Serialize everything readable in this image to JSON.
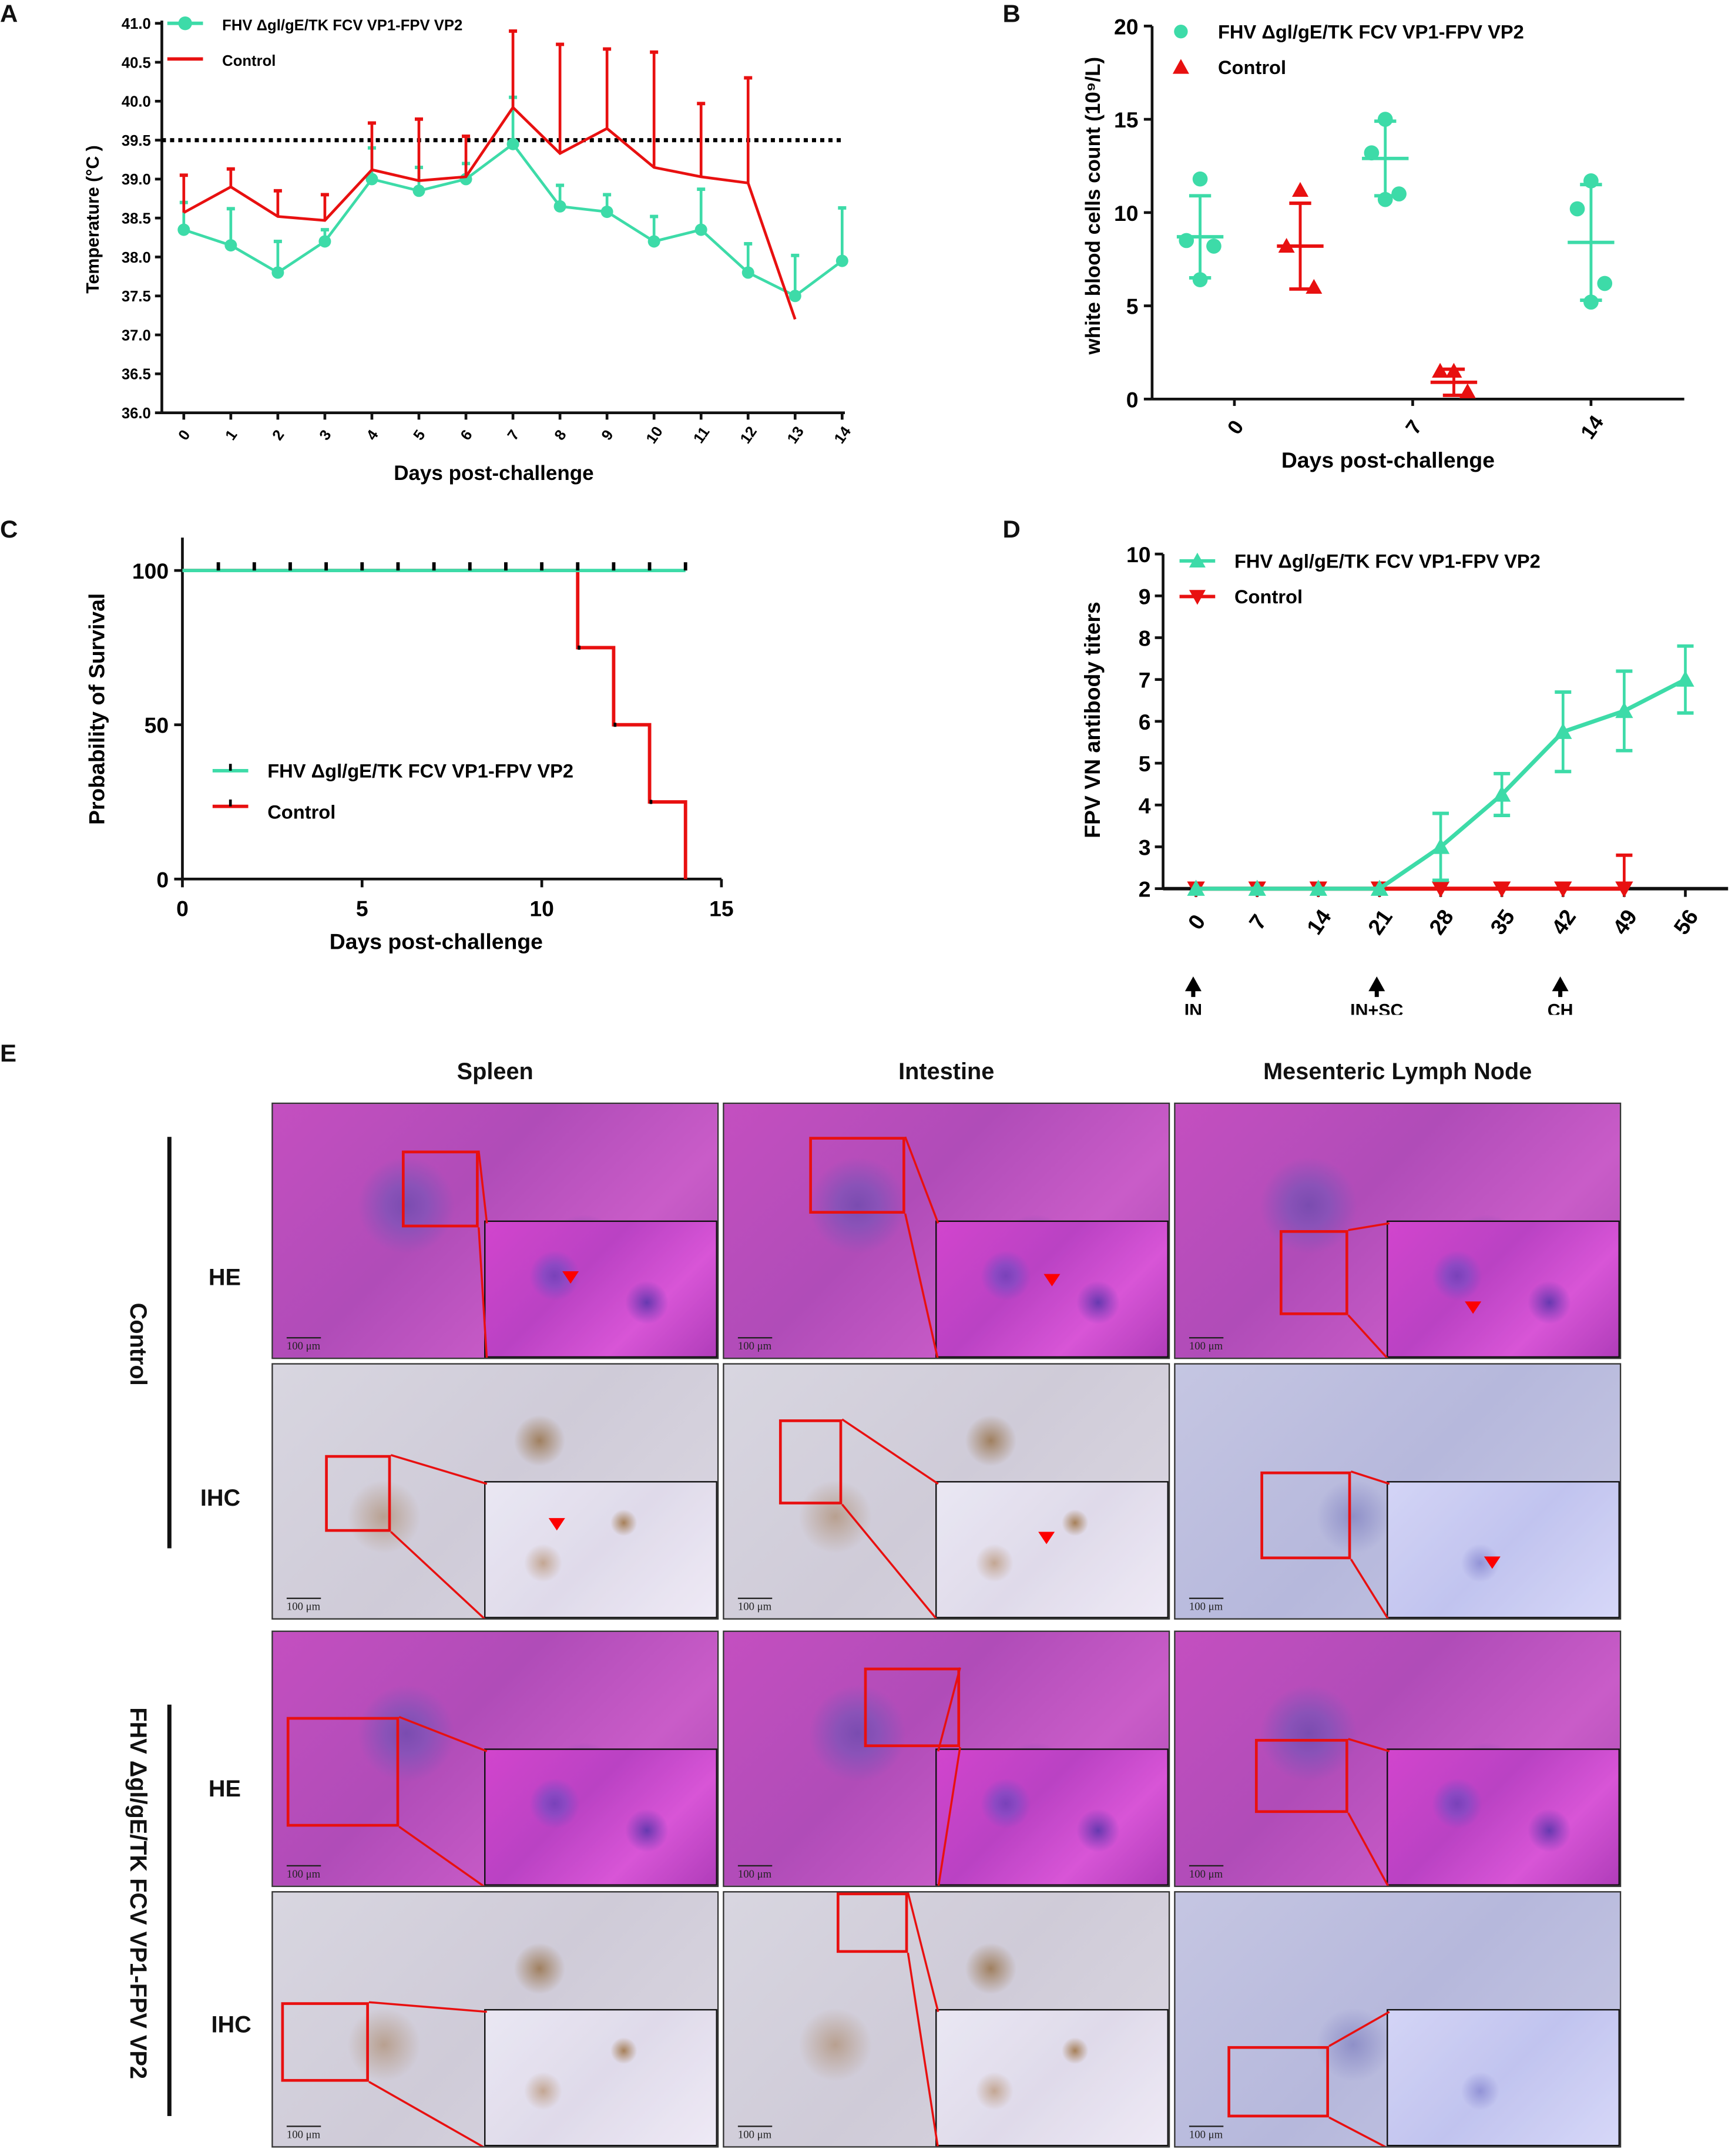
{
  "panel_labels": [
    "A",
    "B",
    "C",
    "D",
    "E"
  ],
  "legend": {
    "vaccine": "FHV Δgl/gE/TK FCV VP1-FPV VP2",
    "control": "Control"
  },
  "colors": {
    "vaccine": "#3ddba8",
    "control": "#e81010",
    "axis": "#111111"
  },
  "chart_data": [
    {
      "id": "A",
      "type": "line",
      "xlabel": "Days post-challenge",
      "ylabel": "Temperature (°C )",
      "ylim": [
        36.0,
        41.0
      ],
      "yticks": [
        "36.0",
        "36.5",
        "37.0",
        "37.5",
        "38.0",
        "38.5",
        "39.0",
        "39.5",
        "40.0",
        "40.5",
        "41.0"
      ],
      "x": [
        0,
        1,
        2,
        3,
        4,
        5,
        6,
        7,
        8,
        9,
        10,
        11,
        12,
        13,
        14
      ],
      "threshold": 39.5,
      "series": [
        {
          "name": "FHV Δgl/gE/TK FCV VP1-FPV VP2",
          "marker": "circle",
          "values": [
            38.35,
            38.15,
            37.8,
            38.2,
            39.0,
            38.85,
            39.0,
            39.45,
            38.65,
            38.58,
            38.2,
            38.35,
            37.8,
            37.5,
            37.95
          ],
          "err": [
            0.35,
            0.47,
            0.4,
            0.15,
            0.4,
            0.3,
            0.2,
            0.6,
            0.27,
            0.22,
            0.32,
            0.52,
            0.37,
            0.52,
            0.68
          ]
        },
        {
          "name": "Control",
          "marker": "none",
          "values": [
            38.57,
            38.9,
            38.52,
            38.47,
            39.12,
            38.98,
            39.03,
            39.92,
            39.33,
            39.65,
            39.15,
            39.03,
            38.95,
            37.2,
            null
          ],
          "err": [
            0.48,
            0.23,
            0.33,
            0.33,
            0.6,
            0.79,
            0.52,
            0.98,
            1.4,
            1.02,
            1.48,
            0.94,
            1.35,
            null,
            null
          ]
        }
      ]
    },
    {
      "id": "B",
      "type": "scatter",
      "xlabel": "Days post-challenge",
      "ylabel": "white blood cells count (10⁹/L)",
      "ylim": [
        0,
        20
      ],
      "yticks": [
        "0",
        "5",
        "10",
        "15",
        "20"
      ],
      "categories": [
        "0",
        "7",
        "14"
      ],
      "series": [
        {
          "name": "FHV Δgl/gE/TK FCV VP1-FPV VP2",
          "marker": "circle",
          "groups": [
            {
              "x": "0",
              "points": [
                11.8,
                8.5,
                8.2,
                6.4
              ],
              "mean": 8.7,
              "sd": 2.2
            },
            {
              "x": "7",
              "points": [
                15.0,
                13.2,
                11.0,
                10.7
              ],
              "mean": 12.9,
              "sd": 2.0
            },
            {
              "x": "14",
              "points": [
                11.7,
                10.2,
                6.2,
                5.2
              ],
              "mean": 8.4,
              "sd": 3.1
            }
          ]
        },
        {
          "name": "Control",
          "marker": "triangle",
          "groups": [
            {
              "x": "0",
              "points": [
                11.2,
                8.2,
                6.0
              ],
              "mean": 8.2,
              "sd": 2.3
            },
            {
              "x": "7",
              "points": [
                1.5,
                1.5,
                0.4
              ],
              "mean": 0.9,
              "sd": 0.7
            }
          ]
        }
      ]
    },
    {
      "id": "C",
      "type": "line",
      "xlabel": "Days post-challenge",
      "ylabel": "Probability of Survival",
      "xlim": [
        0,
        15
      ],
      "ylim": [
        0,
        100
      ],
      "xticks": [
        "0",
        "5",
        "10",
        "15"
      ],
      "yticks": [
        "0",
        "50",
        "100"
      ],
      "series": [
        {
          "name": "FHV Δgl/gE/TK FCV VP1-FPV VP2",
          "steps": [
            [
              0,
              100
            ],
            [
              14,
              100
            ]
          ],
          "censored": [
            1,
            2,
            3,
            4,
            5,
            6,
            7,
            8,
            9,
            10,
            11,
            12,
            13,
            14
          ]
        },
        {
          "name": "Control",
          "steps": [
            [
              0,
              100
            ],
            [
              11,
              100
            ],
            [
              11,
              75
            ],
            [
              12,
              75
            ],
            [
              12,
              50
            ],
            [
              13,
              50
            ],
            [
              13,
              25
            ],
            [
              14,
              25
            ],
            [
              14,
              0
            ]
          ],
          "censored": []
        }
      ]
    },
    {
      "id": "D",
      "type": "line",
      "xlabel": "",
      "ylabel": "FPV VN antibody titers",
      "ylim": [
        2,
        10
      ],
      "yticks": [
        "2",
        "3",
        "4",
        "5",
        "6",
        "7",
        "8",
        "9",
        "10"
      ],
      "categories": [
        "0",
        "7",
        "14",
        "21",
        "28",
        "35",
        "42",
        "49",
        "56"
      ],
      "annotations": [
        {
          "at": "0",
          "text": "IN"
        },
        {
          "at": "21",
          "text": "IN+SC"
        },
        {
          "at": "42",
          "text": "CH"
        }
      ],
      "series": [
        {
          "name": "FHV Δgl/gE/TK FCV VP1-FPV VP2",
          "marker": "triangle-up",
          "values": [
            2,
            2,
            2,
            2,
            3,
            4.25,
            5.75,
            6.25,
            7
          ],
          "err": [
            0,
            0,
            0,
            0,
            0.8,
            0.5,
            0.95,
            0.95,
            0.8
          ]
        },
        {
          "name": "Control",
          "marker": "triangle-down",
          "values": [
            2,
            2,
            2,
            2,
            2,
            2,
            2,
            2,
            null
          ],
          "err": [
            0,
            0,
            0,
            0,
            0,
            0,
            0,
            0.8,
            null
          ]
        }
      ]
    }
  ],
  "histology": {
    "columns": [
      "Spleen",
      "Intestine",
      "Mesenteric Lymph Node"
    ],
    "groups": [
      "Control",
      "FHV Δgl/gE/TK FCV VP1-FPV VP2"
    ],
    "rows": [
      "HE",
      "IHC",
      "HE",
      "IHC"
    ],
    "scale_bar": "100 μm"
  }
}
